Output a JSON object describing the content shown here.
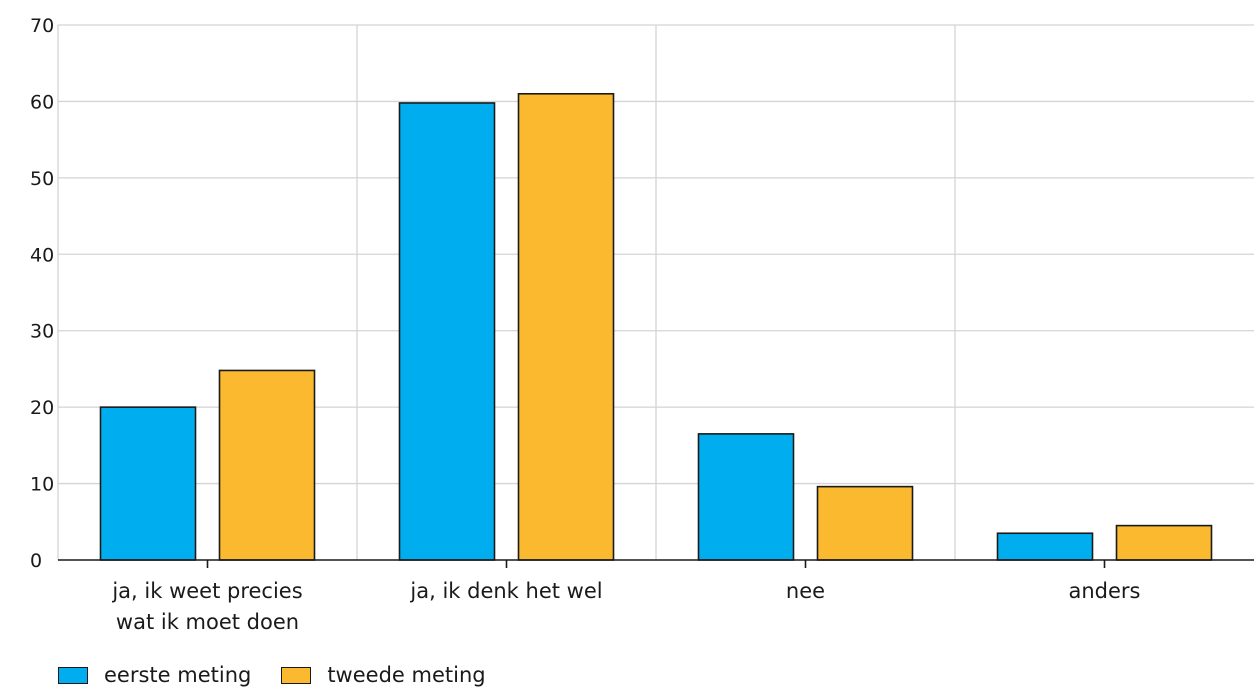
{
  "chart_data": {
    "type": "bar",
    "title": "",
    "xlabel": "",
    "ylabel": "",
    "ylim": [
      0,
      70
    ],
    "yticks": [
      0,
      10,
      20,
      30,
      40,
      50,
      60,
      70
    ],
    "grid": true,
    "legend_position": "bottom-left",
    "categories": [
      [
        "ja, ik weet precies",
        "wat ik moet doen"
      ],
      [
        "ja, ik denk het wel"
      ],
      [
        "nee"
      ],
      [
        "anders"
      ]
    ],
    "series": [
      {
        "name": "eerste meting",
        "color": "#00aeef",
        "values": [
          20,
          59.8,
          16.5,
          3.5
        ]
      },
      {
        "name": "tweede meting",
        "color": "#fbb92f",
        "values": [
          24.8,
          61,
          9.6,
          4.5
        ]
      }
    ]
  }
}
